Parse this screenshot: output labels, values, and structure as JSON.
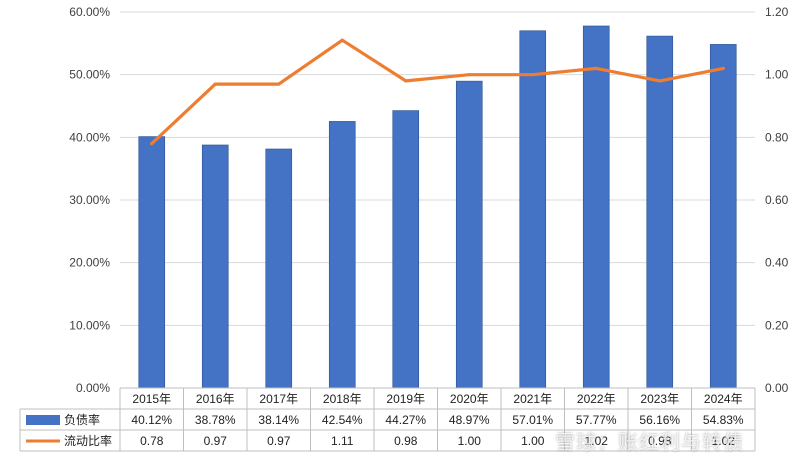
{
  "chart_data": {
    "type": "bar",
    "categories": [
      "2015年",
      "2016年",
      "2017年",
      "2018年",
      "2019年",
      "2020年",
      "2021年",
      "2022年",
      "2023年",
      "2024年"
    ],
    "series": [
      {
        "name": "负债率",
        "type": "bar",
        "axis": "left",
        "values": [
          40.12,
          38.78,
          38.14,
          42.54,
          44.27,
          48.97,
          57.01,
          57.77,
          56.16,
          54.83
        ],
        "labels": [
          "40.12%",
          "38.78%",
          "38.14%",
          "42.54%",
          "44.27%",
          "48.97%",
          "57.01%",
          "57.77%",
          "56.16%",
          "54.83%"
        ],
        "color": "#4472c4"
      },
      {
        "name": "流动比率",
        "type": "line",
        "axis": "right",
        "values": [
          0.78,
          0.97,
          0.97,
          1.11,
          0.98,
          1.0,
          1.0,
          1.02,
          0.98,
          1.02
        ],
        "labels": [
          "0.78",
          "0.97",
          "0.97",
          "1.11",
          "0.98",
          "1.00",
          "1.00",
          "1.02",
          "0.98",
          "1.02"
        ],
        "color": "#ed7d31"
      }
    ],
    "y_left": {
      "range": [
        0,
        60
      ],
      "ticks": [
        "0.00%",
        "10.00%",
        "20.00%",
        "30.00%",
        "40.00%",
        "50.00%",
        "60.00%"
      ]
    },
    "y_right": {
      "range": [
        0,
        1.2
      ],
      "ticks": [
        "0.00",
        "0.20",
        "0.40",
        "0.60",
        "0.80",
        "1.00",
        "1.20"
      ]
    },
    "grid": true,
    "legend": "data-table"
  },
  "watermark": "雪球：账红利与转债"
}
